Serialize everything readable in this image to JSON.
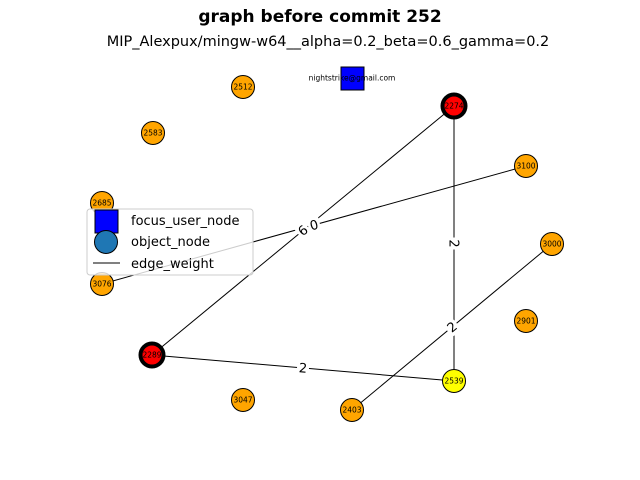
{
  "title": "graph before commit 252",
  "subtitle": "MIP_Alexpux/mingw-w64__alpha=0.2_beta=0.6_gamma=0.2",
  "colors": {
    "focus": "#0000ff",
    "object": "#ffa500",
    "highlight": "#ff0000",
    "yellow": "#ffff00",
    "legend_object": "#1f77b4"
  },
  "focus_node": {
    "label": "nightstrike@gmail.com"
  },
  "nodes": [
    {
      "id": "2512",
      "label": "2512",
      "color": "orange",
      "bold": false
    },
    {
      "id": "2583",
      "label": "2583",
      "color": "orange",
      "bold": false
    },
    {
      "id": "2685",
      "label": "2685",
      "color": "orange",
      "bold": false
    },
    {
      "id": "3076",
      "label": "3076",
      "color": "orange",
      "bold": false
    },
    {
      "id": "2289",
      "label": "2289",
      "color": "red",
      "bold": true
    },
    {
      "id": "3047",
      "label": "3047",
      "color": "orange",
      "bold": false
    },
    {
      "id": "2403",
      "label": "2403",
      "color": "orange",
      "bold": false
    },
    {
      "id": "2539",
      "label": "2539",
      "color": "yellow",
      "bold": false
    },
    {
      "id": "2901",
      "label": "2901",
      "color": "orange",
      "bold": false
    },
    {
      "id": "3000",
      "label": "3000",
      "color": "orange",
      "bold": false
    },
    {
      "id": "3100",
      "label": "3100",
      "color": "orange",
      "bold": false
    },
    {
      "id": "2274",
      "label": "2274",
      "color": "red",
      "bold": true
    }
  ],
  "edges": [
    {
      "source": "2289",
      "target": "2274",
      "weight": "6"
    },
    {
      "source": "3076",
      "target": "3100",
      "weight": "0"
    },
    {
      "source": "2274",
      "target": "2539",
      "weight": "2"
    },
    {
      "source": "2403",
      "target": "3000",
      "weight": "2"
    },
    {
      "source": "2289",
      "target": "2539",
      "weight": "2"
    }
  ],
  "legend": {
    "focus": "focus_user_node",
    "object": "object_node",
    "edge": "edge_weight"
  }
}
